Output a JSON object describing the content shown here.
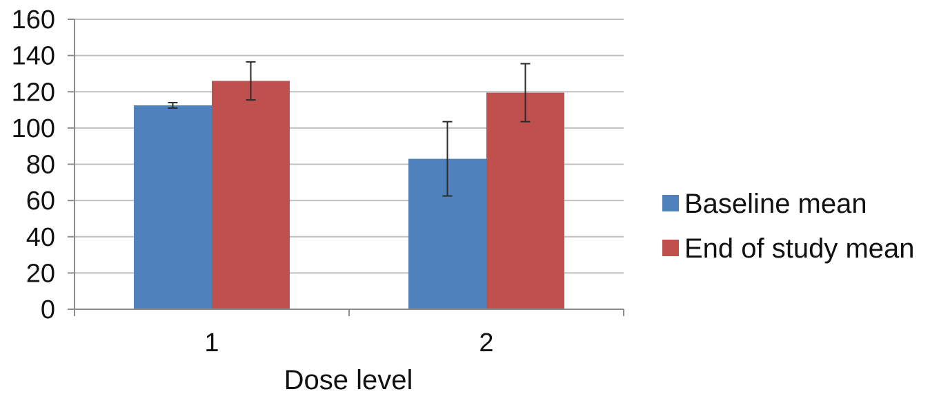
{
  "chart_data": {
    "type": "bar",
    "xlabel": "Dose level",
    "ylabel": "",
    "categories": [
      "1",
      "2"
    ],
    "ylim": [
      0,
      160
    ],
    "yticks": [
      0,
      20,
      40,
      60,
      80,
      100,
      120,
      140,
      160
    ],
    "grid": true,
    "legend_position": "right",
    "series": [
      {
        "name": "Baseline mean",
        "color": "#4f81bd",
        "values": [
          112.5,
          83
        ],
        "error": [
          1.5,
          20.5
        ]
      },
      {
        "name": "End of study mean",
        "color": "#c0504d",
        "values": [
          126,
          119.5
        ],
        "error": [
          10.5,
          16
        ]
      }
    ]
  }
}
